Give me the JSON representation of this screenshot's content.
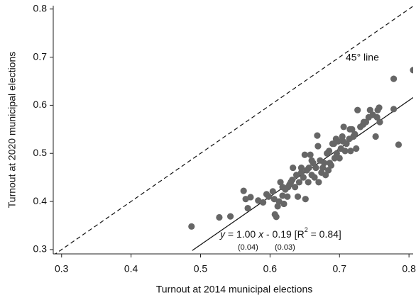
{
  "chart_data": {
    "type": "scatter",
    "x_label": "Turnout at 2014 municipal elections",
    "y_label": "Turnout at 2020 municipal elections",
    "xlim": [
      0.288,
      0.806
    ],
    "ylim": [
      0.291,
      0.807
    ],
    "xticks": [
      0.3,
      0.4,
      0.5,
      0.6,
      0.7,
      0.8
    ],
    "yticks": [
      0.3,
      0.4,
      0.5,
      0.6,
      0.7,
      0.8
    ],
    "grid": false,
    "series": [
      {
        "color": "#666666",
        "x": [
          0.487,
          0.527,
          0.543,
          0.562,
          0.565,
          0.568,
          0.572,
          0.583,
          0.59,
          0.595,
          0.604,
          0.606,
          0.607,
          0.609,
          0.611,
          0.613,
          0.615,
          0.618,
          0.62,
          0.622,
          0.625,
          0.628,
          0.632,
          0.633,
          0.636,
          0.638,
          0.64,
          0.642,
          0.645,
          0.648,
          0.65,
          0.651,
          0.653,
          0.655,
          0.656,
          0.658,
          0.66,
          0.662,
          0.664,
          0.666,
          0.668,
          0.669,
          0.67,
          0.672,
          0.674,
          0.676,
          0.678,
          0.68,
          0.682,
          0.684,
          0.686,
          0.688,
          0.69,
          0.692,
          0.693,
          0.695,
          0.696,
          0.698,
          0.7,
          0.702,
          0.704,
          0.706,
          0.708,
          0.71,
          0.714,
          0.716,
          0.718,
          0.72,
          0.722,
          0.724,
          0.726,
          0.73,
          0.734,
          0.738,
          0.744,
          0.748,
          0.752,
          0.754,
          0.757,
          0.758,
          0.778,
          0.778,
          0.785,
          0.806,
          0.735,
          0.742,
          0.755,
          0.715,
          0.705,
          0.685,
          0.66,
          0.645,
          0.63,
          0.626,
          0.618,
          0.598
        ],
        "values": [
          0.348,
          0.367,
          0.369,
          0.422,
          0.405,
          0.386,
          0.409,
          0.402,
          0.398,
          0.415,
          0.421,
          0.405,
          0.373,
          0.368,
          0.39,
          0.4,
          0.44,
          0.43,
          0.395,
          0.425,
          0.41,
          0.435,
          0.445,
          0.47,
          0.43,
          0.455,
          0.41,
          0.44,
          0.46,
          0.45,
          0.497,
          0.405,
          0.465,
          0.44,
          0.47,
          0.497,
          0.455,
          0.48,
          0.45,
          0.47,
          0.537,
          0.515,
          0.44,
          0.485,
          0.46,
          0.47,
          0.48,
          0.455,
          0.5,
          0.465,
          0.48,
          0.475,
          0.52,
          0.52,
          0.49,
          0.53,
          0.5,
          0.525,
          0.49,
          0.51,
          0.535,
          0.555,
          0.505,
          0.52,
          0.53,
          0.505,
          0.55,
          0.535,
          0.54,
          0.51,
          0.59,
          0.555,
          0.56,
          0.565,
          0.59,
          0.58,
          0.535,
          0.575,
          0.595,
          0.565,
          0.592,
          0.655,
          0.518,
          0.673,
          0.565,
          0.575,
          0.59,
          0.55,
          0.525,
          0.505,
          0.485,
          0.47,
          0.44,
          0.43,
          0.412,
          0.41
        ]
      }
    ],
    "lines": [
      {
        "x": [
          0.288,
          0.806
        ],
        "values": [
          0.288,
          0.806
        ],
        "style": "dashed"
      },
      {
        "x": [
          0.488,
          0.806
        ],
        "values": [
          0.298,
          0.616
        ],
        "style": "solid"
      }
    ],
    "annotations": {
      "diagonal": "45° line",
      "equation": [
        "y",
        " = 1.00 ",
        "x",
        " - 0.19 [R",
        "2",
        " = 0.84]"
      ],
      "se_slope": "(0.04)",
      "se_intercept": "(0.03)"
    }
  }
}
